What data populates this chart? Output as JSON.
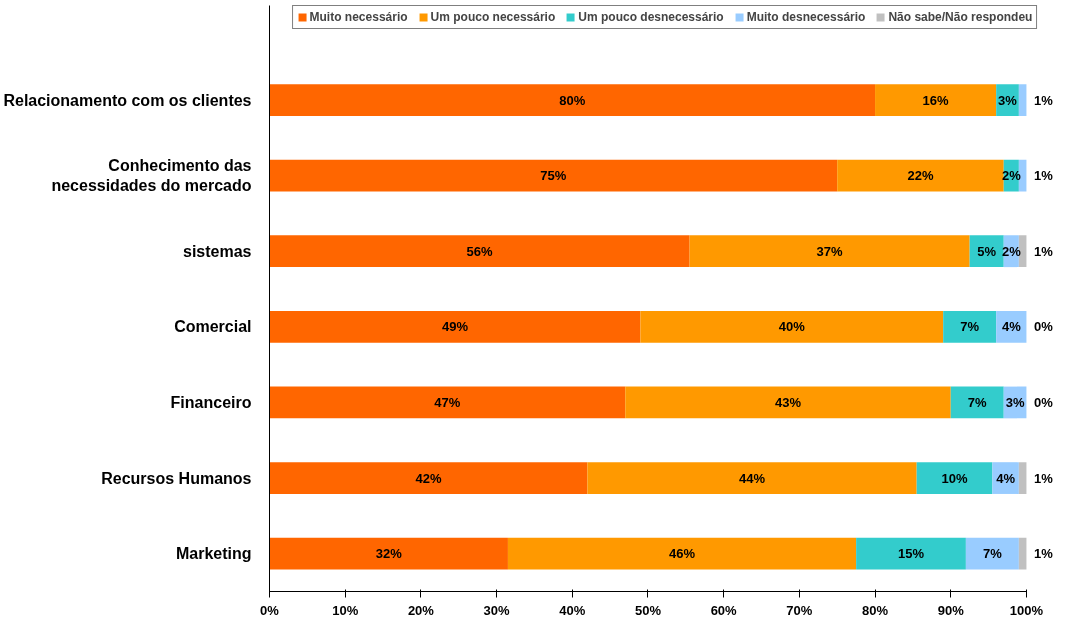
{
  "chart_data": {
    "type": "bar",
    "orientation": "horizontal",
    "stacked": true,
    "categories": [
      "Relacionamento com os clientes",
      "Conhecimento das\nnecessidades do mercado",
      "sistemas",
      "Comercial",
      "Financeiro",
      "Recursos Humanos",
      "Marketing"
    ],
    "series": [
      {
        "name": "Muito necessário",
        "color": "#ff6600",
        "values": [
          80,
          75,
          55.5,
          49,
          47,
          42,
          31.5
        ],
        "value_labels": [
          "80%",
          "75%",
          "56%",
          "49%",
          "47%",
          "42%",
          "32%"
        ]
      },
      {
        "name": "Um pouco necessário",
        "color": "#ff9900",
        "values": [
          16,
          22,
          37,
          40,
          43,
          43.5,
          46
        ],
        "value_labels": [
          "16%",
          "22%",
          "37%",
          "40%",
          "43%",
          "44%",
          "46%"
        ]
      },
      {
        "name": "Um pouco desnecessário",
        "color": "#33cccc",
        "values": [
          3,
          2,
          4.5,
          7,
          7,
          10,
          14.5
        ],
        "value_labels": [
          "3%",
          "2%",
          "5%",
          "7%",
          "7%",
          "10%",
          "15%"
        ]
      },
      {
        "name": "Muito desnecessário",
        "color": "#99ccff",
        "values": [
          1,
          1,
          2,
          4,
          3,
          3.5,
          7
        ],
        "value_labels": [
          "1%",
          "1%",
          "2%",
          "4%",
          "3%",
          "4%",
          "7%"
        ]
      },
      {
        "name": "Não sabe/Não respondeu",
        "color": "#c0c0c0",
        "values": [
          null,
          null,
          1,
          0,
          0,
          1,
          1
        ],
        "value_labels": [
          null,
          null,
          "1%",
          "0%",
          "0%",
          "1%",
          "1%"
        ]
      }
    ],
    "xlim": [
      0,
      100
    ],
    "xticks": [
      {
        "value": 0,
        "label": "0%"
      },
      {
        "value": 10,
        "label": "10%"
      },
      {
        "value": 20,
        "label": "20%"
      },
      {
        "value": 30,
        "label": "30%"
      },
      {
        "value": 40,
        "label": "40%"
      },
      {
        "value": 50,
        "label": "50%"
      },
      {
        "value": 60,
        "label": "60%"
      },
      {
        "value": 70,
        "label": "70%"
      },
      {
        "value": 80,
        "label": "80%"
      },
      {
        "value": 90,
        "label": "90%"
      },
      {
        "value": 100,
        "label": "100%"
      }
    ],
    "legend": "top",
    "grid": false
  }
}
